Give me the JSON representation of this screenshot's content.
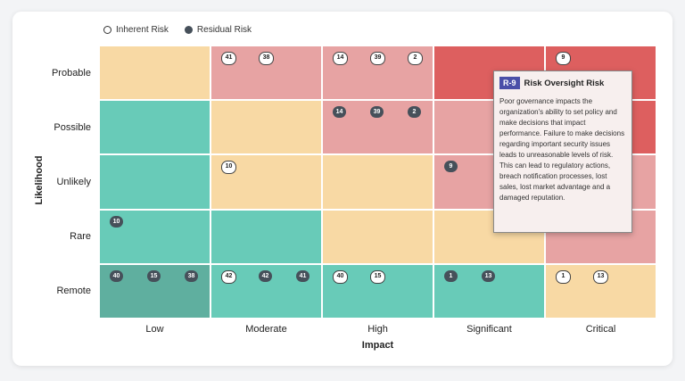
{
  "legend": {
    "inherent": "Inherent Risk",
    "residual": "Residual Risk"
  },
  "axis": {
    "y_title": "Likelihood",
    "x_title": "Impact"
  },
  "rows": [
    "Probable",
    "Possible",
    "Unlikely",
    "Rare",
    "Remote"
  ],
  "columns": [
    "Low",
    "Moderate",
    "High",
    "Significant",
    "Critical"
  ],
  "colors": {
    "orange": "#f8d9a4",
    "pink": "#e7a3a3",
    "red": "#dd5f5f",
    "teal": "#68cbb8",
    "tealdark": "#5faf9f"
  },
  "cells": [
    [
      "orange",
      "pink",
      "pink",
      "red",
      "red"
    ],
    [
      "teal",
      "orange",
      "pink",
      "pink",
      "red"
    ],
    [
      "teal",
      "orange",
      "orange",
      "pink",
      "pink"
    ],
    [
      "teal",
      "teal",
      "orange",
      "orange",
      "pink"
    ],
    [
      "tealdark",
      "teal",
      "teal",
      "teal",
      "orange"
    ]
  ],
  "badges": [
    {
      "row": 0,
      "col": 1,
      "slot": 0,
      "type": "inherent",
      "label": "41"
    },
    {
      "row": 0,
      "col": 1,
      "slot": 1,
      "type": "inherent",
      "label": "38"
    },
    {
      "row": 0,
      "col": 2,
      "slot": 0,
      "type": "inherent",
      "label": "14"
    },
    {
      "row": 0,
      "col": 2,
      "slot": 1,
      "type": "inherent",
      "label": "39"
    },
    {
      "row": 0,
      "col": 2,
      "slot": 2,
      "type": "inherent",
      "label": "2"
    },
    {
      "row": 0,
      "col": 4,
      "slot": 0,
      "type": "inherent",
      "label": "9"
    },
    {
      "row": 1,
      "col": 2,
      "slot": 0,
      "type": "residual",
      "label": "14"
    },
    {
      "row": 1,
      "col": 2,
      "slot": 1,
      "type": "residual",
      "label": "39"
    },
    {
      "row": 1,
      "col": 2,
      "slot": 2,
      "type": "residual",
      "label": "2"
    },
    {
      "row": 2,
      "col": 1,
      "slot": 0,
      "type": "inherent",
      "label": "10"
    },
    {
      "row": 2,
      "col": 3,
      "slot": 0,
      "type": "residual",
      "label": "9"
    },
    {
      "row": 3,
      "col": 0,
      "slot": 0,
      "type": "residual",
      "label": "10"
    },
    {
      "row": 4,
      "col": 0,
      "slot": 0,
      "type": "residual",
      "label": "40"
    },
    {
      "row": 4,
      "col": 0,
      "slot": 1,
      "type": "residual",
      "label": "15"
    },
    {
      "row": 4,
      "col": 0,
      "slot": 2,
      "type": "residual",
      "label": "38"
    },
    {
      "row": 4,
      "col": 1,
      "slot": 0,
      "type": "inherent",
      "label": "42"
    },
    {
      "row": 4,
      "col": 1,
      "slot": 1,
      "type": "residual",
      "label": "42"
    },
    {
      "row": 4,
      "col": 1,
      "slot": 2,
      "type": "residual",
      "label": "41"
    },
    {
      "row": 4,
      "col": 2,
      "slot": 0,
      "type": "inherent",
      "label": "40"
    },
    {
      "row": 4,
      "col": 2,
      "slot": 1,
      "type": "inherent",
      "label": "15"
    },
    {
      "row": 4,
      "col": 3,
      "slot": 0,
      "type": "residual",
      "label": "1"
    },
    {
      "row": 4,
      "col": 3,
      "slot": 1,
      "type": "residual",
      "label": "13"
    },
    {
      "row": 4,
      "col": 4,
      "slot": 0,
      "type": "inherent",
      "label": "1"
    },
    {
      "row": 4,
      "col": 4,
      "slot": 1,
      "type": "inherent",
      "label": "13"
    }
  ],
  "tooltip": {
    "id": "R-9",
    "title": "Risk Oversight Risk",
    "body": "Poor governance impacts the organization's ability to set policy and make decisions that impact performance. Failure to make decisions regarding important security issues leads to unreasonable levels of risk. This can lead to regulatory actions, breach notification processes, lost sales, lost market advantage and a damaged reputation."
  }
}
